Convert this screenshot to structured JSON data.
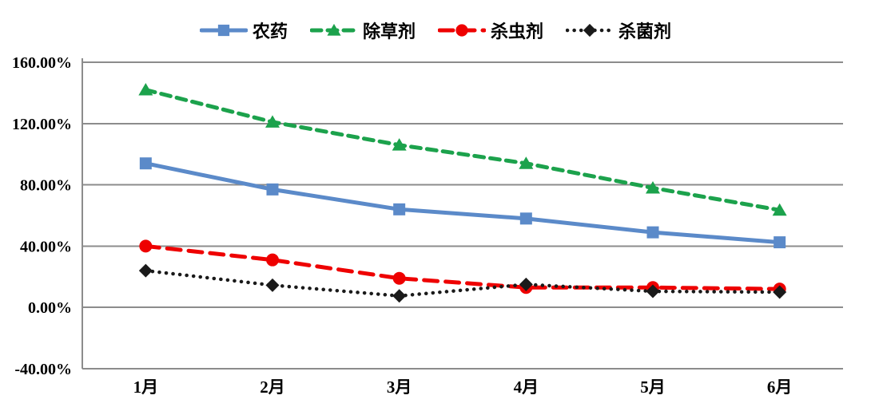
{
  "chart_data": {
    "type": "line",
    "categories": [
      "1月",
      "2月",
      "3月",
      "4月",
      "5月",
      "6月"
    ],
    "series": [
      {
        "name": "农药",
        "key": "pesticide",
        "color": "#5B8AC9",
        "line_style": "solid",
        "marker": "square",
        "values": [
          94,
          77,
          64,
          58,
          49,
          42.5
        ]
      },
      {
        "name": "除草剂",
        "key": "herbicide",
        "color": "#1CA24C",
        "line_style": "dashed",
        "marker": "triangle",
        "values": [
          142,
          121,
          106,
          94,
          78,
          63.5
        ]
      },
      {
        "name": "杀虫剂",
        "key": "insecticide",
        "color": "#EE0000",
        "line_style": "long-dash",
        "marker": "circle",
        "values": [
          40,
          31,
          19,
          13,
          13,
          12
        ]
      },
      {
        "name": "杀菌剂",
        "key": "fungicide",
        "color": "#1A1A1A",
        "line_style": "dotted",
        "marker": "diamond",
        "values": [
          24,
          14.5,
          7.5,
          15,
          10.5,
          10
        ]
      }
    ],
    "title": "",
    "xlabel": "",
    "ylabel": "",
    "ylim": [
      -40,
      160
    ],
    "ytick_step": 40,
    "ytick_labels": [
      "160.00%",
      "120.00%",
      "80.00%",
      "40.00%",
      "0.00%",
      "-40.00%"
    ],
    "grid": true,
    "legend_position": "top",
    "style": {
      "gridline_color": "#8C8C8C",
      "axis_color": "#8C8C8C",
      "background": "#FFFFFF",
      "text_color": "#000000"
    }
  }
}
